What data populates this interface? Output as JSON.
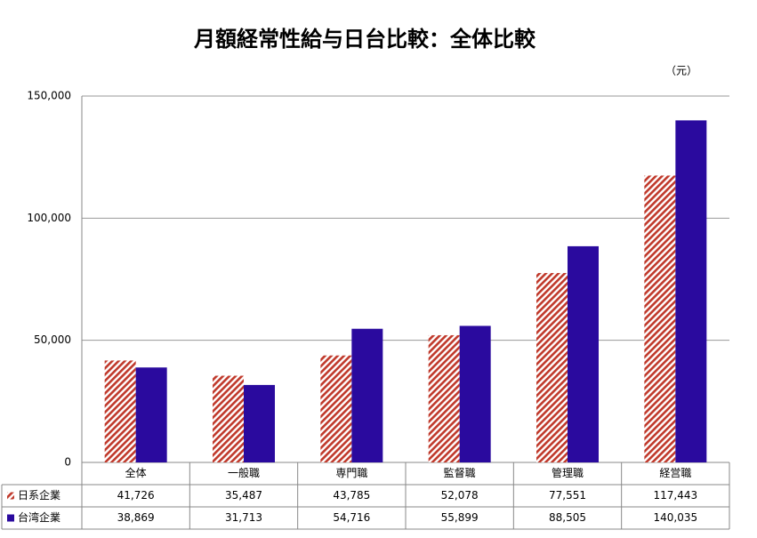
{
  "chart_data": {
    "type": "bar",
    "title": "月額経常性給与日台比較：全体比較",
    "unit": "（元）",
    "categories": [
      "全体",
      "一般職",
      "専門職",
      "監督職",
      "管理職",
      "経営職"
    ],
    "series": [
      {
        "name": "日系企業",
        "color": "#c0392b",
        "hatch": true,
        "values": [
          41726,
          35487,
          43785,
          52078,
          77551,
          117443
        ],
        "value_labels": [
          "41,726",
          "35,487",
          "43,785",
          "52,078",
          "77,551",
          "117,443"
        ]
      },
      {
        "name": "台湾企業",
        "color": "#2a0a9e",
        "hatch": false,
        "values": [
          38869,
          31713,
          54716,
          55899,
          88505,
          140035
        ],
        "value_labels": [
          "38,869",
          "31,713",
          "54,716",
          "55,899",
          "88,505",
          "140,035"
        ]
      }
    ],
    "ylim": [
      0,
      150000
    ],
    "yticks": [
      0,
      {
        "value": 50000,
        "label": "50,000"
      },
      {
        "value": 100000,
        "label": "100,000"
      },
      {
        "value": 150000,
        "label": "150,000"
      }
    ],
    "grid": true
  }
}
